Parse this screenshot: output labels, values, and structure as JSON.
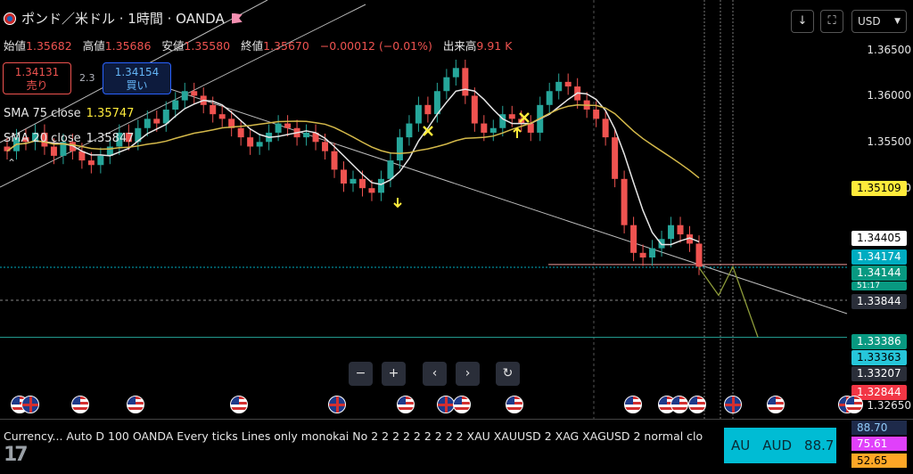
{
  "header": {
    "title": "ポンド／米ドル · 1時間 · OANDA",
    "open_label": "始値",
    "open": "1.35682",
    "high_label": "高値",
    "high": "1.35686",
    "low_label": "安値",
    "low": "1.35580",
    "close_label": "終値",
    "close": "1.35670",
    "change": "−0.00012 (−0.01%)",
    "volume_label": "出来高",
    "volume": "9.91 K"
  },
  "trade": {
    "sell_price": "1.34131",
    "sell_label": "売り",
    "spread": "2.3",
    "buy_price": "1.34154",
    "buy_label": "買い"
  },
  "indicators": {
    "sma75_label": "SMA 75 close",
    "sma75_value": "1.35747",
    "sma20_label": "SMA 20 close",
    "sma20_value": "1.35847"
  },
  "toolbar": {
    "currency": "USD",
    "download_icon": "download-icon",
    "fullscreen_icon": "fullscreen-icon"
  },
  "price_axis": {
    "ticks": [
      "1.36500",
      "1.36000",
      "1.35500",
      "1.35000",
      "1.32650"
    ],
    "tags": [
      {
        "label": "1.35109",
        "bg": "#ffeb3b",
        "fg": "#000000"
      },
      {
        "label": "1.34405",
        "bg": "#ffffff",
        "fg": "#000000"
      },
      {
        "label": "1.34174",
        "bg": "#00acc1",
        "fg": "#ffffff"
      },
      {
        "label": "1.34144",
        "bg": "#089981",
        "fg": "#ffffff"
      },
      {
        "label": "51:17",
        "bg": "#089981",
        "fg": "#ffffff"
      },
      {
        "label": "1.33844",
        "bg": "#2a2e39",
        "fg": "#ffffff"
      },
      {
        "label": "1.33386",
        "bg": "#089981",
        "fg": "#ffffff"
      },
      {
        "label": "1.33363",
        "bg": "#26c6da",
        "fg": "#000000"
      },
      {
        "label": "1.33207",
        "bg": "#2a2e39",
        "fg": "#ffffff"
      },
      {
        "label": "1.32844",
        "bg": "#f23645",
        "fg": "#ffffff"
      }
    ]
  },
  "nav_buttons": [
    "−",
    "+",
    "‹",
    "›",
    "↻"
  ],
  "events": [
    {
      "flag": "us"
    },
    {
      "flag": "uk"
    },
    {
      "flag": "us"
    },
    {
      "flag": "us"
    },
    {
      "flag": "us"
    },
    {
      "flag": "uk"
    },
    {
      "flag": "us"
    },
    {
      "flag": "uk"
    },
    {
      "flag": "us"
    },
    {
      "flag": "us"
    },
    {
      "flag": "us"
    },
    {
      "flag": "us"
    },
    {
      "flag": "us"
    },
    {
      "flag": "us"
    },
    {
      "flag": "uk"
    },
    {
      "flag": "us"
    },
    {
      "flag": "uk"
    },
    {
      "flag": "us"
    }
  ],
  "bottom_indicator": {
    "text": "Currency... Auto D 100 OANDA Every ticks Lines only monokai No 2 2 2 2 2 2 2 2 2 XAU XAUUSD 2 XAG XAGUSD 2 normal clo",
    "cur_code": "AU",
    "cur_name": "AUD",
    "cur_value": "88.7",
    "values": [
      {
        "label": "88.70",
        "bg": "#1e2a4a",
        "fg": "#90caf9"
      },
      {
        "label": "75.61",
        "bg": "#e040fb",
        "fg": "#ffffff"
      },
      {
        "label": "52.65",
        "bg": "#ffa726",
        "fg": "#000000"
      }
    ]
  },
  "chart_data": {
    "type": "candlestick",
    "symbol": "GBPUSD",
    "timeframe": "1h",
    "ylim": [
      1.3265,
      1.3665
    ],
    "closes": [
      1.354,
      1.3555,
      1.355,
      1.356,
      1.3545,
      1.3535,
      1.355,
      1.354,
      1.353,
      1.3525,
      1.3535,
      1.3545,
      1.356,
      1.355,
      1.3565,
      1.3575,
      1.357,
      1.3585,
      1.3595,
      1.3605,
      1.36,
      1.359,
      1.358,
      1.3575,
      1.3565,
      1.3555,
      1.3545,
      1.355,
      1.356,
      1.357,
      1.3565,
      1.3555,
      1.356,
      1.355,
      1.354,
      1.352,
      1.3505,
      1.351,
      1.35,
      1.3495,
      1.351,
      1.353,
      1.3555,
      1.357,
      1.359,
      1.358,
      1.3605,
      1.362,
      1.363,
      1.36,
      1.357,
      1.356,
      1.3565,
      1.358,
      1.3575,
      1.357,
      1.356,
      1.359,
      1.3605,
      1.3615,
      1.361,
      1.3595,
      1.3585,
      1.3575,
      1.3555,
      1.351,
      1.346,
      1.343,
      1.3425,
      1.3435,
      1.3445,
      1.346,
      1.345,
      1.344,
      1.3415
    ],
    "series": [
      {
        "name": "SMA 75 close",
        "color": "#d4b94a",
        "last": 1.35747
      },
      {
        "name": "SMA 20 close",
        "color": "#e6e6e6",
        "last": 1.35847
      }
    ],
    "horizontal_levels": [
      1.34174,
      1.34144,
      1.33844,
      1.33386
    ],
    "projection": [
      1.3414,
      1.3384,
      1.3415,
      1.3339
    ]
  }
}
